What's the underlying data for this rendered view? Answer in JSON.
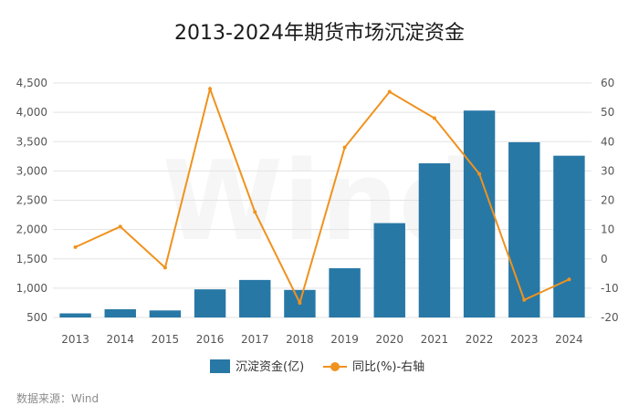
{
  "chart_data": {
    "type": "bar",
    "title": "2013-2024年期货市场沉淀资金",
    "categories": [
      "2013",
      "2014",
      "2015",
      "2016",
      "2017",
      "2018",
      "2019",
      "2020",
      "2021",
      "2022",
      "2023",
      "2024"
    ],
    "series": [
      {
        "name": "沉淀资金(亿)",
        "type": "bar",
        "axis": "left",
        "color": "#2878a6",
        "values": [
          570,
          640,
          620,
          980,
          1140,
          970,
          1340,
          2110,
          3130,
          4030,
          3490,
          3260
        ]
      },
      {
        "name": "同比(%)-右轴",
        "type": "line",
        "axis": "right",
        "color": "#f0921e",
        "values": [
          4,
          11,
          -3,
          58,
          16,
          -15,
          38,
          57,
          48,
          29,
          -14,
          -7
        ]
      }
    ],
    "y_left": {
      "min": 500,
      "max": 4500,
      "ticks": [
        "500",
        "1,000",
        "1,500",
        "2,000",
        "2,500",
        "3,000",
        "3,500",
        "4,000",
        "4,500"
      ],
      "tick_values": [
        500,
        1000,
        1500,
        2000,
        2500,
        3000,
        3500,
        4000,
        4500
      ]
    },
    "y_right": {
      "min": -20,
      "max": 60,
      "ticks": [
        "-20",
        "-10",
        "0",
        "10",
        "20",
        "30",
        "40",
        "50",
        "60"
      ],
      "tick_values": [
        -20,
        -10,
        0,
        10,
        20,
        30,
        40,
        50,
        60
      ]
    },
    "grid": true,
    "legend_position": "bottom",
    "watermark": "Wind",
    "source": "数据来源：Wind"
  }
}
